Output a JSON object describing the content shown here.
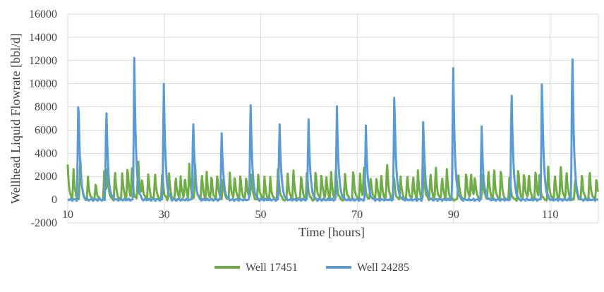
{
  "chart_data": {
    "type": "line",
    "xlabel": "Time [hours]",
    "ylabel": "Wellhead Liquid Flowrate [bbl/d]",
    "xlim": [
      10,
      120
    ],
    "ylim": [
      -2000,
      16000
    ],
    "x_ticks": [
      "10",
      "30",
      "50",
      "70",
      "90",
      "110"
    ],
    "y_ticks": [
      "-2000",
      "0",
      "2000",
      "4000",
      "6000",
      "8000",
      "10000",
      "12000",
      "14000",
      "16000"
    ],
    "grid": true,
    "legend_position": "bottom",
    "series": [
      {
        "name": "Well 17451",
        "color": "#70ad47",
        "peaks": [
          [
            10.0,
            3100
          ],
          [
            11.2,
            2600
          ],
          [
            12.6,
            3900
          ],
          [
            14.2,
            2000
          ],
          [
            15.8,
            1500
          ],
          [
            17.6,
            2900
          ],
          [
            18.2,
            3100
          ],
          [
            19.8,
            2600
          ],
          [
            21.3,
            2500
          ],
          [
            22.4,
            3100
          ],
          [
            23.3,
            2900
          ],
          [
            24.6,
            3800
          ],
          [
            25.4,
            2000
          ],
          [
            26.7,
            2400
          ],
          [
            28.1,
            2400
          ],
          [
            29.6,
            2500
          ],
          [
            31.0,
            2300
          ],
          [
            32.4,
            2200
          ],
          [
            33.4,
            2100
          ],
          [
            34.3,
            2200
          ],
          [
            35.2,
            3100
          ],
          [
            36.4,
            3000
          ],
          [
            37.8,
            2400
          ],
          [
            38.8,
            2400
          ],
          [
            39.8,
            2200
          ],
          [
            41.0,
            2400
          ],
          [
            42.2,
            2100
          ],
          [
            43.6,
            2400
          ],
          [
            44.6,
            2300
          ],
          [
            45.8,
            2300
          ],
          [
            47.0,
            2200
          ],
          [
            48.0,
            2500
          ],
          [
            49.5,
            2300
          ],
          [
            50.8,
            2000
          ],
          [
            52.0,
            1900
          ],
          [
            53.6,
            3100
          ],
          [
            55.6,
            2300
          ],
          [
            56.8,
            2500
          ],
          [
            58.4,
            2400
          ],
          [
            59.6,
            2600
          ],
          [
            61.4,
            2700
          ],
          [
            62.6,
            2500
          ],
          [
            63.6,
            2300
          ],
          [
            64.6,
            2400
          ],
          [
            65.6,
            3000
          ],
          [
            67.5,
            2400
          ],
          [
            69.2,
            2700
          ],
          [
            70.6,
            2200
          ],
          [
            71.4,
            3200
          ],
          [
            72.8,
            2200
          ],
          [
            74.0,
            2100
          ],
          [
            75.0,
            2300
          ],
          [
            76.2,
            3500
          ],
          [
            77.6,
            2300
          ],
          [
            79.0,
            2100
          ],
          [
            80.4,
            2300
          ],
          [
            81.6,
            2200
          ],
          [
            82.6,
            2500
          ],
          [
            83.8,
            2800
          ],
          [
            85.2,
            2500
          ],
          [
            86.3,
            2900
          ],
          [
            87.6,
            2200
          ],
          [
            88.6,
            2700
          ],
          [
            91.0,
            2200
          ],
          [
            92.6,
            2600
          ],
          [
            93.6,
            2500
          ],
          [
            94.4,
            2300
          ],
          [
            96.0,
            2500
          ],
          [
            97.2,
            2800
          ],
          [
            98.4,
            2800
          ],
          [
            99.8,
            2900
          ],
          [
            101.6,
            2300
          ],
          [
            103.4,
            2900
          ],
          [
            104.6,
            2500
          ],
          [
            105.6,
            2400
          ],
          [
            107.0,
            2700
          ],
          [
            107.8,
            2100
          ],
          [
            109.6,
            2800
          ],
          [
            111.0,
            2300
          ],
          [
            112.2,
            3200
          ],
          [
            113.4,
            2700
          ],
          [
            115.2,
            2000
          ],
          [
            116.6,
            2400
          ],
          [
            118.2,
            2600
          ],
          [
            119.6,
            2000
          ]
        ]
      },
      {
        "name": "Well 24285",
        "color": "#5b9bd5",
        "peaks": [
          [
            12.2,
            9400
          ],
          [
            18.0,
            8400
          ],
          [
            23.8,
            12300
          ],
          [
            29.9,
            10600
          ],
          [
            36.0,
            7300
          ],
          [
            41.9,
            6100
          ],
          [
            47.9,
            8700
          ],
          [
            53.9,
            6900
          ],
          [
            59.9,
            7400
          ],
          [
            65.8,
            8000
          ],
          [
            71.8,
            6400
          ],
          [
            77.7,
            9500
          ],
          [
            83.7,
            7200
          ],
          [
            89.9,
            12000
          ],
          [
            95.8,
            6300
          ],
          [
            102.0,
            10100
          ],
          [
            108.3,
            10900
          ],
          [
            114.6,
            13500
          ]
        ]
      }
    ]
  },
  "legend": {
    "items": [
      {
        "label": "Well 17451",
        "color": "#70ad47"
      },
      {
        "label": "Well 24285",
        "color": "#5b9bd5"
      }
    ]
  }
}
